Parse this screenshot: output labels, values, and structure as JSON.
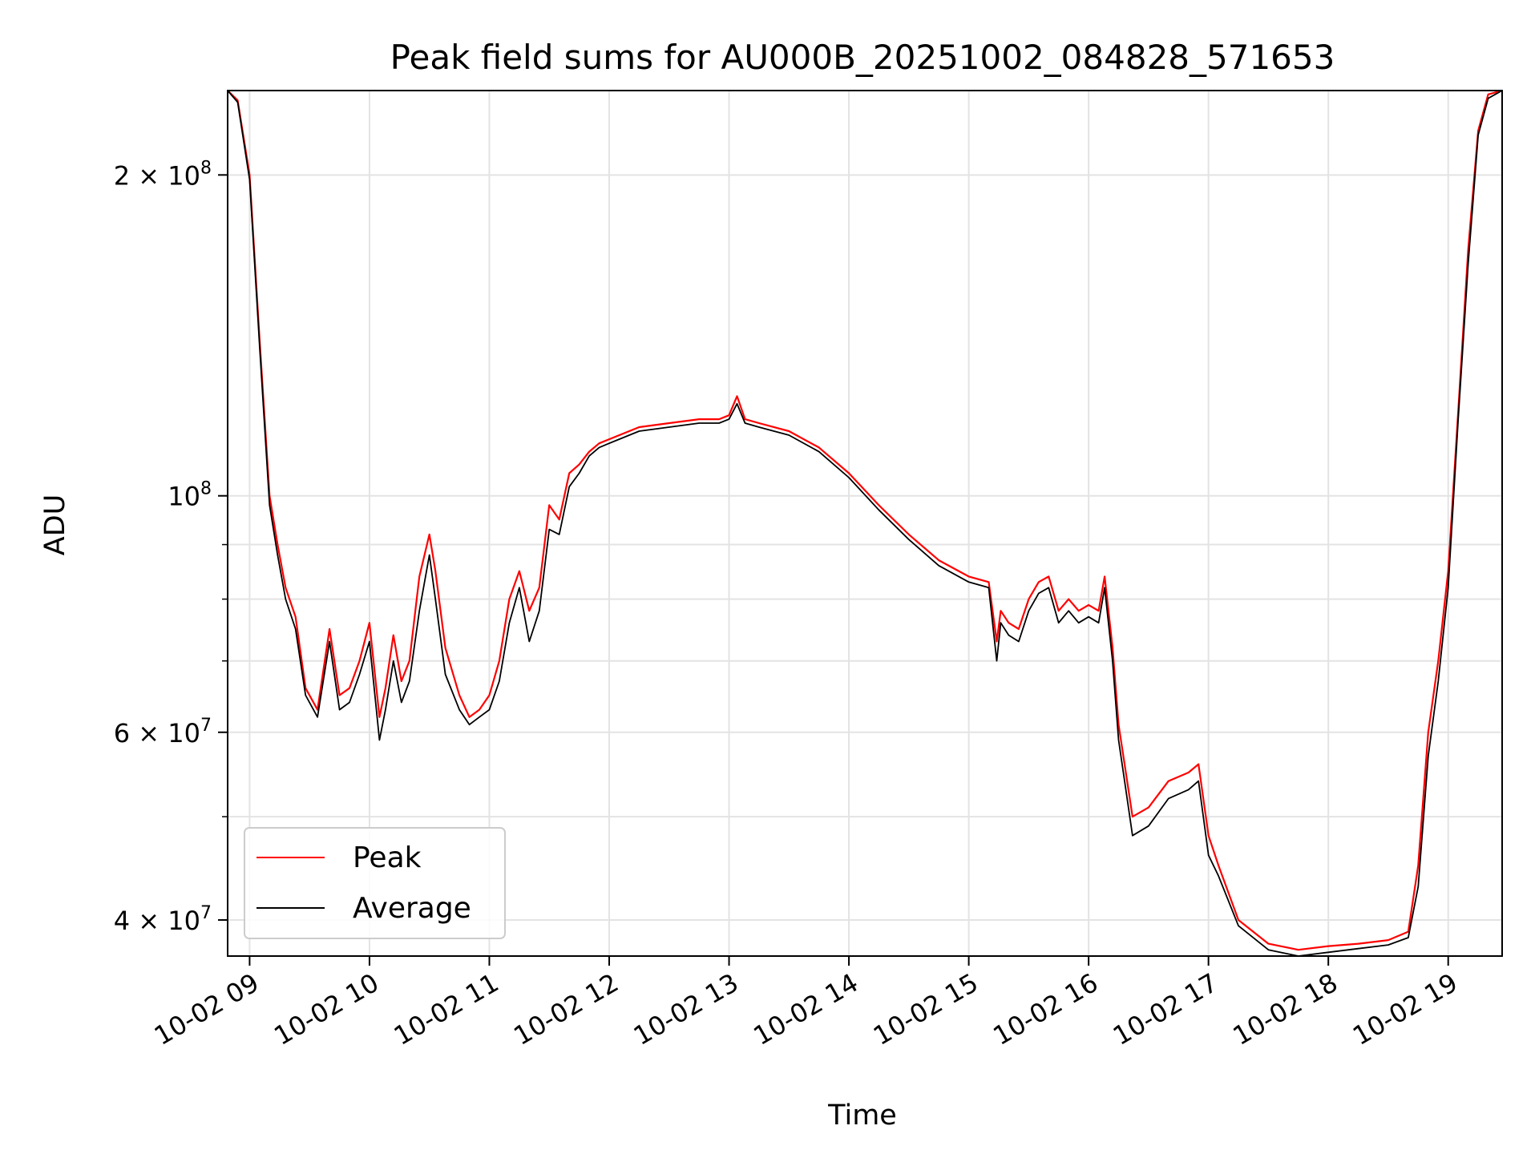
{
  "chart_data": {
    "type": "line",
    "title": "Peak field sums for AU000B_20251002_084828_571653",
    "xlabel": "Time",
    "ylabel": "ADU",
    "xlim": [
      "10-02 08:49",
      "10-02 19:27"
    ],
    "ylim": [
      37000000,
      240000000
    ],
    "yscale": "log",
    "grid": true,
    "legend_position": "lower-left",
    "x_ticks": [
      "10-02 09",
      "10-02 10",
      "10-02 11",
      "10-02 12",
      "10-02 13",
      "10-02 14",
      "10-02 15",
      "10-02 16",
      "10-02 17",
      "10-02 18",
      "10-02 19"
    ],
    "y_ticks": [
      {
        "value": 40000000,
        "mantissa": "4",
        "exp": "7"
      },
      {
        "value": 60000000,
        "mantissa": "6",
        "exp": "7"
      },
      {
        "value": 100000000,
        "mantissa": "",
        "exp": "8"
      },
      {
        "value": 200000000,
        "mantissa": "2",
        "exp": "8"
      }
    ],
    "series": [
      {
        "name": "Peak",
        "color": "#ff0000",
        "x": [
          "08:49",
          "08:54",
          "09:00",
          "09:05",
          "09:10",
          "09:14",
          "09:18",
          "09:23",
          "09:28",
          "09:34",
          "09:40",
          "09:45",
          "09:50",
          "09:55",
          "10:00",
          "10:05",
          "10:08",
          "10:12",
          "10:16",
          "10:20",
          "10:25",
          "10:30",
          "10:33",
          "10:38",
          "10:45",
          "10:50",
          "10:55",
          "11:00",
          "11:05",
          "11:10",
          "11:15",
          "11:20",
          "11:25",
          "11:30",
          "11:35",
          "11:40",
          "11:45",
          "11:50",
          "11:55",
          "12:00",
          "12:15",
          "12:30",
          "12:45",
          "12:55",
          "13:00",
          "13:04",
          "13:08",
          "13:15",
          "13:30",
          "13:45",
          "14:00",
          "14:15",
          "14:30",
          "14:45",
          "15:00",
          "15:10",
          "15:14",
          "15:16",
          "15:20",
          "15:25",
          "15:30",
          "15:35",
          "15:40",
          "15:45",
          "15:50",
          "15:55",
          "16:00",
          "16:05",
          "16:08",
          "16:12",
          "16:15",
          "16:18",
          "16:22",
          "16:30",
          "16:40",
          "16:50",
          "16:55",
          "17:00",
          "17:05",
          "17:15",
          "17:30",
          "17:45",
          "18:00",
          "18:15",
          "18:30",
          "18:40",
          "18:45",
          "18:50",
          "18:55",
          "19:00",
          "19:05",
          "19:10",
          "19:15",
          "19:20",
          "19:27"
        ],
        "y": [
          240000000,
          235000000,
          200000000,
          140000000,
          100000000,
          90000000,
          82000000,
          77000000,
          66000000,
          63000000,
          75000000,
          65000000,
          66000000,
          70000000,
          76000000,
          62000000,
          66000000,
          74000000,
          67000000,
          70000000,
          84000000,
          92000000,
          85000000,
          72000000,
          65000000,
          62000000,
          63000000,
          65000000,
          70000000,
          80000000,
          85000000,
          78000000,
          82000000,
          98000000,
          95000000,
          105000000,
          107000000,
          110000000,
          112000000,
          113000000,
          116000000,
          117000000,
          118000000,
          118000000,
          119000000,
          124000000,
          118000000,
          117000000,
          115000000,
          111000000,
          105000000,
          98000000,
          92000000,
          87000000,
          84000000,
          83000000,
          73000000,
          78000000,
          76000000,
          75000000,
          80000000,
          83000000,
          84000000,
          78000000,
          80000000,
          78000000,
          79000000,
          78000000,
          84000000,
          72000000,
          61000000,
          56000000,
          50000000,
          51000000,
          54000000,
          55000000,
          56000000,
          48000000,
          45000000,
          40000000,
          38000000,
          37500000,
          37800000,
          38000000,
          38300000,
          39000000,
          45000000,
          60000000,
          70000000,
          85000000,
          120000000,
          170000000,
          220000000,
          238000000,
          240000000
        ]
      },
      {
        "name": "Average",
        "color": "#000000",
        "x": [
          "08:49",
          "08:54",
          "09:00",
          "09:05",
          "09:10",
          "09:14",
          "09:18",
          "09:23",
          "09:28",
          "09:34",
          "09:40",
          "09:45",
          "09:50",
          "09:55",
          "10:00",
          "10:05",
          "10:08",
          "10:12",
          "10:16",
          "10:20",
          "10:25",
          "10:30",
          "10:33",
          "10:38",
          "10:45",
          "10:50",
          "10:55",
          "11:00",
          "11:05",
          "11:10",
          "11:15",
          "11:20",
          "11:25",
          "11:30",
          "11:35",
          "11:40",
          "11:45",
          "11:50",
          "11:55",
          "12:00",
          "12:15",
          "12:30",
          "12:45",
          "12:55",
          "13:00",
          "13:04",
          "13:08",
          "13:15",
          "13:30",
          "13:45",
          "14:00",
          "14:15",
          "14:30",
          "14:45",
          "15:00",
          "15:10",
          "15:14",
          "15:16",
          "15:20",
          "15:25",
          "15:30",
          "15:35",
          "15:40",
          "15:45",
          "15:50",
          "15:55",
          "16:00",
          "16:05",
          "16:08",
          "16:12",
          "16:15",
          "16:18",
          "16:22",
          "16:30",
          "16:40",
          "16:50",
          "16:55",
          "17:00",
          "17:05",
          "17:15",
          "17:30",
          "17:45",
          "18:00",
          "18:15",
          "18:30",
          "18:40",
          "18:45",
          "18:50",
          "18:55",
          "19:00",
          "19:05",
          "19:10",
          "19:15",
          "19:20",
          "19:27"
        ],
        "y": [
          240000000,
          234000000,
          198000000,
          138000000,
          98000000,
          88000000,
          80000000,
          75000000,
          65000000,
          62000000,
          73000000,
          63000000,
          64000000,
          68000000,
          73000000,
          59000000,
          63000000,
          70000000,
          64000000,
          67000000,
          78000000,
          88000000,
          80000000,
          68000000,
          63000000,
          61000000,
          62000000,
          63000000,
          67000000,
          76000000,
          82000000,
          73000000,
          78000000,
          93000000,
          92000000,
          102000000,
          105000000,
          109000000,
          111000000,
          112000000,
          115000000,
          116000000,
          117000000,
          117000000,
          118000000,
          122000000,
          117000000,
          116000000,
          114000000,
          110000000,
          104000000,
          97000000,
          91000000,
          86000000,
          83000000,
          82000000,
          70000000,
          76000000,
          74000000,
          73000000,
          78000000,
          81000000,
          82000000,
          76000000,
          78000000,
          76000000,
          77000000,
          76000000,
          82000000,
          70000000,
          59000000,
          54000000,
          48000000,
          49000000,
          52000000,
          53000000,
          54000000,
          46000000,
          44000000,
          39500000,
          37500000,
          37000000,
          37300000,
          37600000,
          37900000,
          38500000,
          43000000,
          57000000,
          67000000,
          82000000,
          118000000,
          165000000,
          218000000,
          236000000,
          240000000
        ]
      }
    ]
  }
}
